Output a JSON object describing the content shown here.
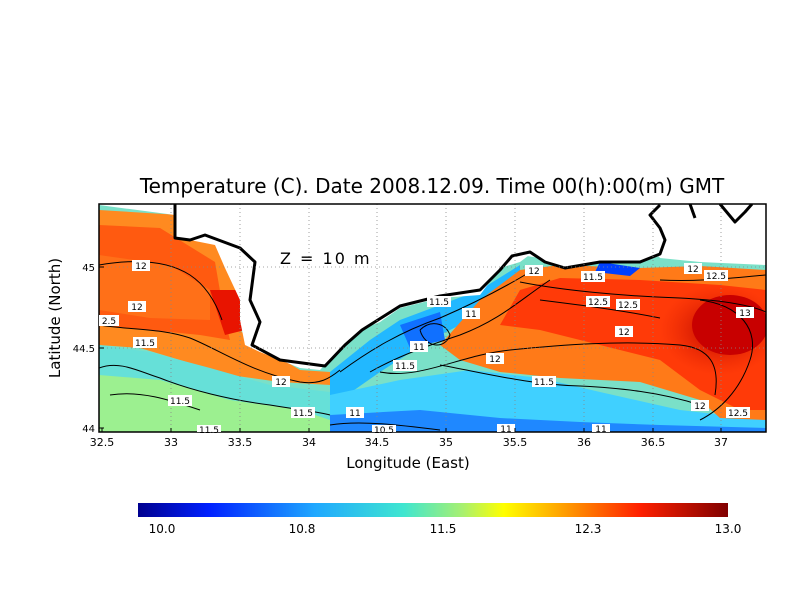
{
  "title": "Temperature (C). Date 2008.12.09. Time 00(h):00(m) GMT",
  "depth_label": "Z = 10 m",
  "xlabel": "Longitude (East)",
  "ylabel": "Latitude (North)",
  "x_ticks": [
    "32.5",
    "33",
    "33.5",
    "34",
    "34.5",
    "35",
    "35.5",
    "36",
    "36.5",
    "37"
  ],
  "y_ticks": [
    "44",
    "44.5",
    "45"
  ],
  "colorbar": {
    "min": 10.0,
    "max": 13.0,
    "tick_labels": [
      "10.0",
      "10.8",
      "11.5",
      "12.3",
      "13.0"
    ]
  },
  "contour_labels": [
    "12",
    "12",
    "2.5",
    "11.5",
    "11.5",
    "12",
    "11.5",
    "11",
    "11.5",
    "11",
    "11",
    "11.5",
    "11.5",
    "12",
    "12",
    "11.5",
    "12.5",
    "12.5",
    "12",
    "12",
    "12.5",
    "13",
    "11.5",
    "12",
    "11",
    "11",
    "12.5",
    "10.5",
    "11.5"
  ],
  "map_data": {
    "lon_range": [
      32.5,
      37.3
    ],
    "lat_range": [
      44.0,
      45.3
    ],
    "variable": "Temperature (C)",
    "date": "2008.12.09",
    "time": "00(h):00(m) GMT",
    "depth_m": 10
  }
}
